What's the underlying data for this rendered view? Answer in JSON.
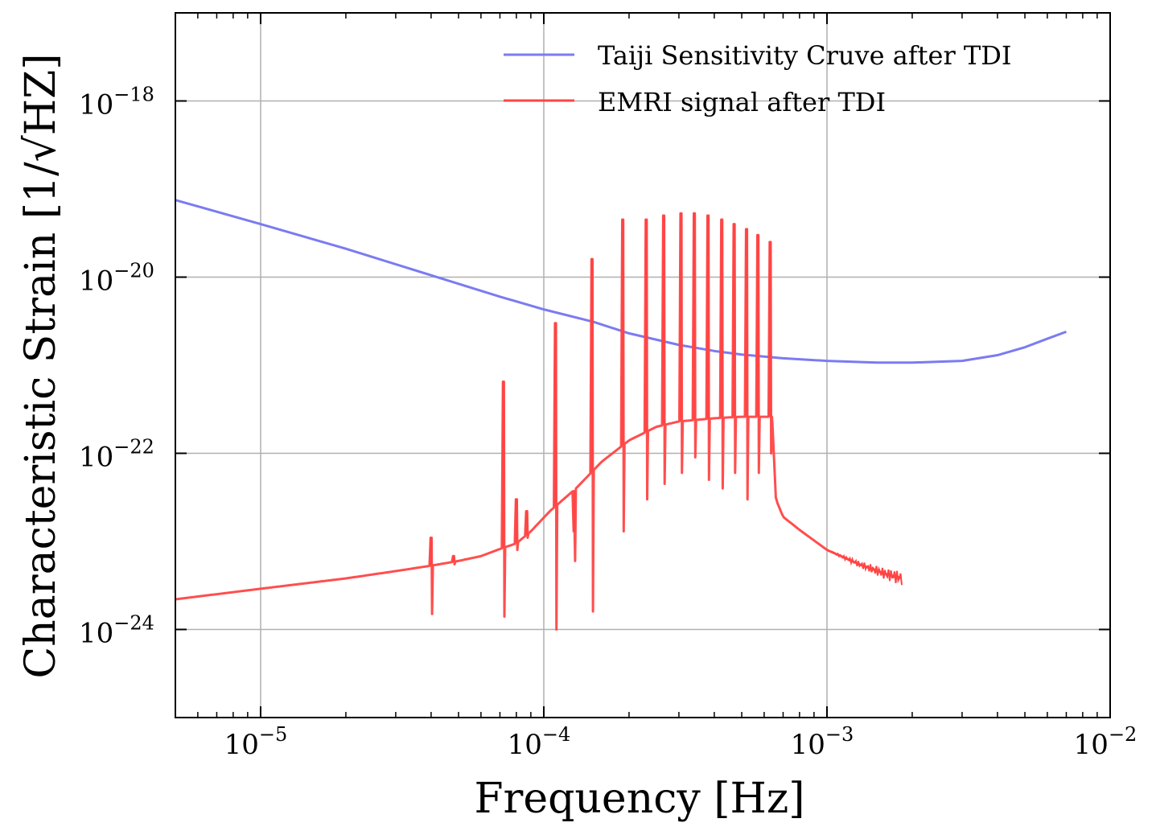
{
  "chart_data": {
    "type": "line",
    "title": "",
    "xlabel": "Frequency [Hz]",
    "ylabel": "Characteristic Strain [1/√HZ]",
    "xscale": "log",
    "yscale": "log",
    "xlim": [
      5e-06,
      0.01
    ],
    "ylim": [
      1e-25,
      1e-17
    ],
    "grid": true,
    "legend_position": "top-right",
    "x_ticks": [
      {
        "value": 1e-05,
        "base": "10",
        "exp": "−5"
      },
      {
        "value": 0.0001,
        "base": "10",
        "exp": "−4"
      },
      {
        "value": 0.001,
        "base": "10",
        "exp": "−3"
      },
      {
        "value": 0.01,
        "base": "10",
        "exp": "−2"
      }
    ],
    "y_ticks": [
      {
        "value": 1e-18,
        "base": "10",
        "exp": "−18"
      },
      {
        "value": 1e-20,
        "base": "10",
        "exp": "−20"
      },
      {
        "value": 1e-22,
        "base": "10",
        "exp": "−22"
      },
      {
        "value": 1e-24,
        "base": "10",
        "exp": "−24"
      }
    ],
    "series": [
      {
        "name": "Taiji Sensitivity Cruve after TDI",
        "color": "#7b7bf2",
        "x": [
          5e-06,
          1e-05,
          2e-05,
          4e-05,
          7e-05,
          0.0001,
          0.00015,
          0.0002,
          0.0003,
          0.0004,
          0.0005,
          0.0007,
          0.001,
          0.0015,
          0.002,
          0.003,
          0.004,
          0.005,
          0.006,
          0.007
        ],
        "y": [
          7.5e-20,
          4e-20,
          2.1e-20,
          1.05e-20,
          6e-21,
          4.3e-21,
          3.1e-21,
          2.3e-21,
          1.7e-21,
          1.45e-21,
          1.32e-21,
          1.2e-21,
          1.12e-21,
          1.07e-21,
          1.07e-21,
          1.12e-21,
          1.3e-21,
          1.6e-21,
          2e-21,
          2.4e-21
        ]
      },
      {
        "name": "EMRI signal after TDI",
        "color": "#ff4444",
        "baseline": {
          "x": [
            5e-06,
            1e-05,
            2e-05,
            3e-05,
            4e-05,
            5e-05,
            6e-05,
            7e-05,
            8e-05,
            9e-05,
            0.000105,
            0.00013,
            0.00016,
            0.0002,
            0.00025,
            0.0003,
            0.0004,
            0.0005,
            0.0006,
            0.00064,
            0.00066,
            0.0007,
            0.0008,
            0.001,
            0.0013,
            0.0016,
            0.00185
          ],
          "y": [
            2.2e-24,
            2.9e-24,
            3.8e-24,
            4.6e-24,
            5.3e-24,
            6e-24,
            6.8e-24,
            8.2e-24,
            9.5e-24,
            1.3e-23,
            2.2e-23,
            4e-23,
            8e-23,
            1.4e-22,
            2e-22,
            2.3e-22,
            2.5e-22,
            2.6e-22,
            2.6e-22,
            2.6e-22,
            3e-23,
            1.9e-23,
            1.35e-23,
            8e-24,
            5.5e-24,
            4.3e-24,
            3.8e-24
          ]
        },
        "spikes": [
          {
            "f": 4e-05,
            "y": 1.1e-23,
            "dip": 1.5e-24
          },
          {
            "f": 4.8e-05,
            "y": 6.8e-24,
            "dip": 5.5e-24
          },
          {
            "f": 7.2e-05,
            "y": 6.5e-22,
            "dip": 1.4e-24
          },
          {
            "f": 8e-05,
            "y": 3e-23,
            "dip": 8e-24
          },
          {
            "f": 8.7e-05,
            "y": 2.2e-23,
            "dip": 1.1e-23
          },
          {
            "f": 0.00011,
            "y": 3e-21,
            "dip": 1e-24
          },
          {
            "f": 0.000128,
            "y": 1.3e-23,
            "dip": 6e-24
          },
          {
            "f": 0.000148,
            "y": 1.6e-20,
            "dip": 1.6e-24
          },
          {
            "f": 0.00019,
            "y": 4.5e-20,
            "dip": 1.3e-23
          },
          {
            "f": 0.00023,
            "y": 4.5e-20,
            "dip": 3e-23
          },
          {
            "f": 0.000265,
            "y": 5e-20,
            "dip": 4.5e-23
          },
          {
            "f": 0.000305,
            "y": 5.3e-20,
            "dip": 6e-23
          },
          {
            "f": 0.00034,
            "y": 5.3e-20,
            "dip": 9e-23
          },
          {
            "f": 0.00038,
            "y": 5e-20,
            "dip": 5e-23
          },
          {
            "f": 0.000425,
            "y": 4.5e-20,
            "dip": 4e-23
          },
          {
            "f": 0.00047,
            "y": 4e-20,
            "dip": 6e-23
          },
          {
            "f": 0.00052,
            "y": 3.5e-20,
            "dip": 3e-23
          },
          {
            "f": 0.00057,
            "y": 3e-20,
            "dip": 6e-23
          },
          {
            "f": 0.00063,
            "y": 2.5e-20,
            "dip": 1e-22
          }
        ]
      }
    ]
  }
}
